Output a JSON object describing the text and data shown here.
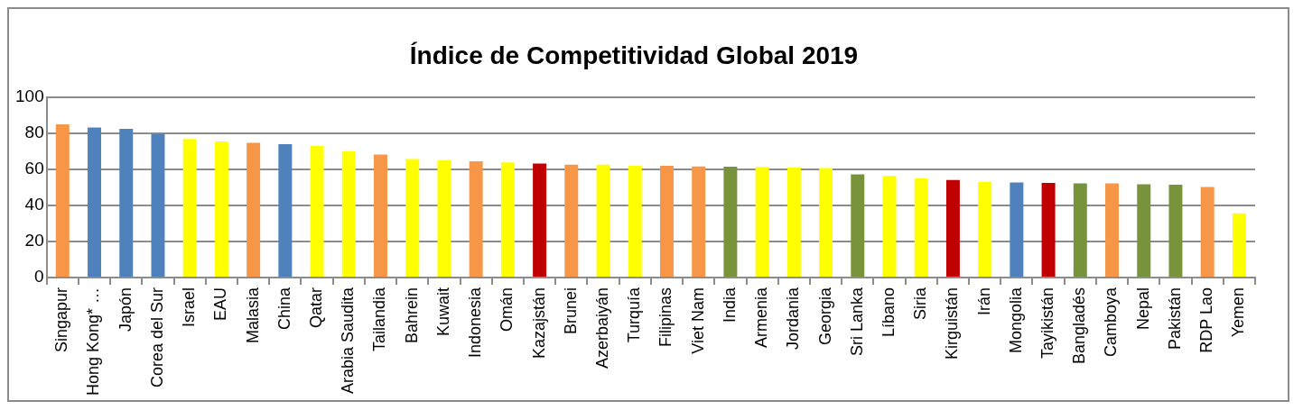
{
  "chart_data": {
    "type": "bar",
    "title": "Índice de Competitividad Global 2019",
    "categories": [
      "Singapur",
      "Hong Kong* …",
      "Japón",
      "Corea del Sur",
      "Israel",
      "EAU",
      "Malasia",
      "China",
      "Qatar",
      "Arabia Saudita",
      "Tailandia",
      "Bahrein",
      "Kuwait",
      "Indonesia",
      "Omán",
      "Kazajstán",
      "Brunei",
      "Azerbaiyán",
      "Turquía",
      "Filipinas",
      "Viet Nam",
      "India",
      "Armenia",
      "Jordania",
      "Georgia",
      "Sri Lanka",
      "Líbano",
      "Siria",
      "Kirguistán",
      "Irán",
      "Mongolia",
      "Tayikistán",
      "Bangladés",
      "Camboya",
      "Nepal",
      "Pakistán",
      "RDP Lao",
      "Yemen"
    ],
    "values": [
      84.8,
      83.1,
      82.3,
      79.6,
      76.7,
      75.3,
      74.6,
      73.9,
      72.9,
      70.0,
      68.1,
      65.6,
      65.0,
      64.4,
      63.7,
      63.1,
      62.5,
      62.5,
      61.8,
      61.9,
      61.5,
      61.4,
      61.3,
      61.0,
      60.6,
      57.1,
      56.3,
      54.9,
      54.0,
      53.0,
      52.6,
      52.4,
      52.1,
      52.1,
      51.6,
      51.4,
      50.1,
      35.5
    ],
    "colors": [
      "#f79646",
      "#4f81bd",
      "#4f81bd",
      "#4f81bd",
      "#ffff00",
      "#ffff00",
      "#f79646",
      "#4f81bd",
      "#ffff00",
      "#ffff00",
      "#f79646",
      "#ffff00",
      "#ffff00",
      "#f79646",
      "#ffff00",
      "#c00000",
      "#f79646",
      "#ffff00",
      "#ffff00",
      "#f79646",
      "#f79646",
      "#77933c",
      "#ffff00",
      "#ffff00",
      "#ffff00",
      "#77933c",
      "#ffff00",
      "#ffff00",
      "#c00000",
      "#ffff00",
      "#4f81bd",
      "#c00000",
      "#77933c",
      "#f79646",
      "#77933c",
      "#77933c",
      "#f79646",
      "#ffff00"
    ],
    "ylim": [
      0,
      100
    ],
    "yticks": [
      0,
      20,
      40,
      60,
      80,
      100
    ],
    "grid": "y",
    "legend": false
  }
}
